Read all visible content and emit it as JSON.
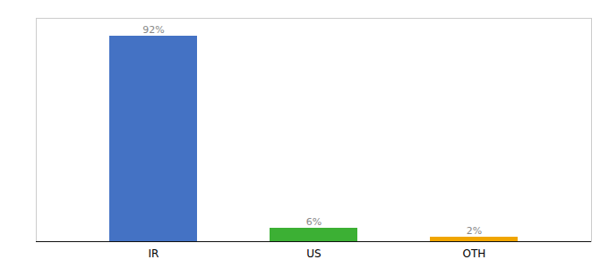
{
  "chart_data": {
    "type": "bar",
    "categories": [
      "IR",
      "US",
      "OTH"
    ],
    "values": [
      92,
      6,
      2
    ],
    "value_labels": [
      "92%",
      "6%",
      "2%"
    ],
    "colors": [
      "#4472c4",
      "#3cb034",
      "#f0a500"
    ],
    "ylim": [
      0,
      100
    ],
    "data_labels": true,
    "tick_labels": "x"
  }
}
